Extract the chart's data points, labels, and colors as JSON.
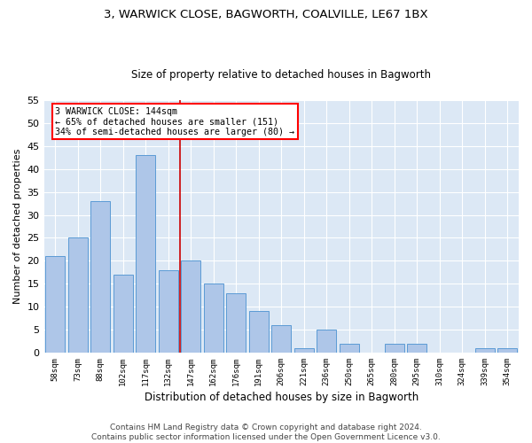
{
  "title1": "3, WARWICK CLOSE, BAGWORTH, COALVILLE, LE67 1BX",
  "title2": "Size of property relative to detached houses in Bagworth",
  "xlabel": "Distribution of detached houses by size in Bagworth",
  "ylabel": "Number of detached properties",
  "categories": [
    "58sqm",
    "73sqm",
    "88sqm",
    "102sqm",
    "117sqm",
    "132sqm",
    "147sqm",
    "162sqm",
    "176sqm",
    "191sqm",
    "206sqm",
    "221sqm",
    "236sqm",
    "250sqm",
    "265sqm",
    "280sqm",
    "295sqm",
    "310sqm",
    "324sqm",
    "339sqm",
    "354sqm"
  ],
  "values": [
    21,
    25,
    33,
    17,
    43,
    18,
    20,
    15,
    13,
    9,
    6,
    1,
    5,
    2,
    0,
    2,
    2,
    0,
    0,
    1,
    1
  ],
  "bar_color": "#aec6e8",
  "bar_edge_color": "#5b9bd5",
  "bg_color": "#dce8f5",
  "grid_color": "#ffffff",
  "vline_x_idx": 5,
  "vline_color": "#cc0000",
  "annotation_line1": "3 WARWICK CLOSE: 144sqm",
  "annotation_line2": "← 65% of detached houses are smaller (151)",
  "annotation_line3": "34% of semi-detached houses are larger (80) →",
  "footer1": "Contains HM Land Registry data © Crown copyright and database right 2024.",
  "footer2": "Contains public sector information licensed under the Open Government Licence v3.0.",
  "ylim": [
    0,
    55
  ],
  "yticks": [
    0,
    5,
    10,
    15,
    20,
    25,
    30,
    35,
    40,
    45,
    50,
    55
  ],
  "title1_fontsize": 9.5,
  "title2_fontsize": 8.5,
  "xlabel_fontsize": 8.5,
  "ylabel_fontsize": 8,
  "xtick_fontsize": 6.5,
  "ytick_fontsize": 8,
  "footer_fontsize": 6.5
}
